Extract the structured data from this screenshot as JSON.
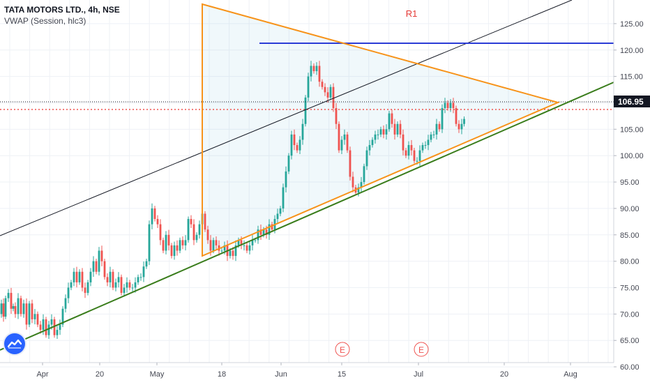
{
  "header": {
    "symbol": "TATA MOTORS LTD., 4h, NSE",
    "indicator": "VWAP (Session, hlc3)"
  },
  "colors": {
    "up": "#26a69a",
    "down": "#ef5350",
    "triangle": "#f7931a",
    "resistance": "#2a3bd6",
    "channel_top": "#131722",
    "support": "#3a7d1c",
    "price_label_bg": "#131722",
    "vwap_line": "#c2185b"
  },
  "chart_data": {
    "type": "candlestick",
    "x_axis": {
      "ticks": [
        "Apr",
        "20",
        "May",
        "18",
        "Jun",
        "15",
        "Jul",
        "20",
        "Aug"
      ]
    },
    "y_axis": {
      "side": "right",
      "range": [
        57.5,
        126
      ],
      "ticks": [
        "60.00",
        "65.00",
        "70.00",
        "75.00",
        "80.00",
        "85.00",
        "90.00",
        "95.00",
        "100.00",
        "105.00",
        "110.00",
        "115.00",
        "120.00",
        "125.00"
      ]
    },
    "last_price": "106.95",
    "annotations": [
      {
        "id": "R1",
        "label": "R1"
      },
      {
        "id": "earnings-1",
        "label": "E"
      },
      {
        "id": "earnings-2",
        "label": "E"
      }
    ],
    "price_path": [
      [
        0,
        70
      ],
      [
        4,
        72
      ],
      [
        6,
        69.5
      ],
      [
        10,
        73
      ],
      [
        14,
        74
      ],
      [
        18,
        71
      ],
      [
        20,
        71.5
      ],
      [
        24,
        70
      ],
      [
        28,
        73
      ],
      [
        32,
        70
      ],
      [
        36,
        72
      ],
      [
        40,
        68
      ],
      [
        44,
        72
      ],
      [
        48,
        69
      ],
      [
        52,
        70
      ],
      [
        56,
        68
      ],
      [
        60,
        67
      ],
      [
        64,
        69
      ],
      [
        68,
        66
      ],
      [
        72,
        68
      ],
      [
        76,
        69
      ],
      [
        80,
        66
      ],
      [
        84,
        67
      ],
      [
        88,
        68
      ],
      [
        92,
        71
      ],
      [
        96,
        73
      ],
      [
        100,
        75
      ],
      [
        104,
        76
      ],
      [
        108,
        78
      ],
      [
        112,
        76
      ],
      [
        116,
        78
      ],
      [
        120,
        75
      ],
      [
        124,
        74
      ],
      [
        128,
        76
      ],
      [
        132,
        78
      ],
      [
        136,
        80
      ],
      [
        140,
        78
      ],
      [
        144,
        82
      ],
      [
        148,
        80
      ],
      [
        152,
        77
      ],
      [
        156,
        76
      ],
      [
        160,
        78
      ],
      [
        164,
        75
      ],
      [
        168,
        76
      ],
      [
        172,
        77
      ],
      [
        176,
        74
      ],
      [
        180,
        75
      ],
      [
        184,
        76
      ],
      [
        188,
        75
      ],
      [
        192,
        75
      ],
      [
        196,
        76
      ],
      [
        200,
        77
      ],
      [
        204,
        77
      ],
      [
        208,
        79
      ],
      [
        212,
        80
      ],
      [
        216,
        87
      ],
      [
        220,
        90
      ],
      [
        224,
        88
      ],
      [
        228,
        87
      ],
      [
        232,
        84
      ],
      [
        236,
        82
      ],
      [
        240,
        85
      ],
      [
        244,
        83
      ],
      [
        248,
        81
      ],
      [
        252,
        83
      ],
      [
        256,
        82
      ],
      [
        260,
        84
      ],
      [
        264,
        83
      ],
      [
        268,
        84
      ],
      [
        272,
        88
      ],
      [
        276,
        87
      ],
      [
        280,
        84
      ],
      [
        284,
        85
      ],
      [
        288,
        87
      ],
      [
        292,
        89
      ],
      [
        296,
        86
      ],
      [
        300,
        84
      ],
      [
        304,
        82
      ],
      [
        308,
        84
      ],
      [
        312,
        83
      ],
      [
        316,
        82
      ],
      [
        320,
        82
      ],
      [
        324,
        83
      ],
      [
        328,
        81
      ],
      [
        332,
        82
      ],
      [
        336,
        81
      ],
      [
        340,
        83
      ],
      [
        344,
        84
      ],
      [
        348,
        83
      ],
      [
        352,
        83
      ],
      [
        356,
        82
      ],
      [
        360,
        83
      ],
      [
        364,
        84
      ],
      [
        368,
        84
      ],
      [
        372,
        86
      ],
      [
        376,
        85
      ],
      [
        380,
        86
      ],
      [
        384,
        85
      ],
      [
        388,
        87
      ],
      [
        392,
        86
      ],
      [
        396,
        88
      ],
      [
        400,
        89
      ],
      [
        404,
        90
      ],
      [
        408,
        94
      ],
      [
        412,
        97
      ],
      [
        416,
        100
      ],
      [
        420,
        104
      ],
      [
        424,
        102
      ],
      [
        428,
        101
      ],
      [
        432,
        103
      ],
      [
        436,
        106
      ],
      [
        440,
        111
      ],
      [
        444,
        115
      ],
      [
        448,
        117
      ],
      [
        452,
        116
      ],
      [
        456,
        117
      ],
      [
        460,
        114
      ],
      [
        464,
        113
      ],
      [
        468,
        112
      ],
      [
        472,
        111
      ],
      [
        476,
        113
      ],
      [
        480,
        109
      ],
      [
        484,
        106
      ],
      [
        488,
        101
      ],
      [
        492,
        103
      ],
      [
        496,
        104
      ],
      [
        500,
        101
      ],
      [
        504,
        96
      ],
      [
        508,
        94
      ],
      [
        512,
        93
      ],
      [
        516,
        94
      ],
      [
        520,
        95
      ],
      [
        524,
        98
      ],
      [
        528,
        101
      ],
      [
        532,
        102
      ],
      [
        536,
        103
      ],
      [
        540,
        104
      ],
      [
        544,
        104
      ],
      [
        548,
        105
      ],
      [
        552,
        104
      ],
      [
        556,
        105
      ],
      [
        560,
        108
      ],
      [
        564,
        106
      ],
      [
        568,
        104
      ],
      [
        572,
        106
      ],
      [
        576,
        104
      ],
      [
        580,
        101
      ],
      [
        584,
        100
      ],
      [
        588,
        102
      ],
      [
        592,
        101
      ],
      [
        596,
        99
      ],
      [
        600,
        99
      ],
      [
        604,
        101
      ],
      [
        608,
        102
      ],
      [
        612,
        102
      ],
      [
        616,
        103
      ],
      [
        620,
        104
      ],
      [
        624,
        104
      ],
      [
        628,
        106
      ],
      [
        632,
        105
      ],
      [
        636,
        109
      ],
      [
        640,
        110
      ],
      [
        644,
        109
      ],
      [
        648,
        110
      ],
      [
        652,
        109
      ],
      [
        656,
        106
      ],
      [
        660,
        105
      ],
      [
        664,
        106
      ],
      [
        667,
        106.95
      ]
    ]
  }
}
